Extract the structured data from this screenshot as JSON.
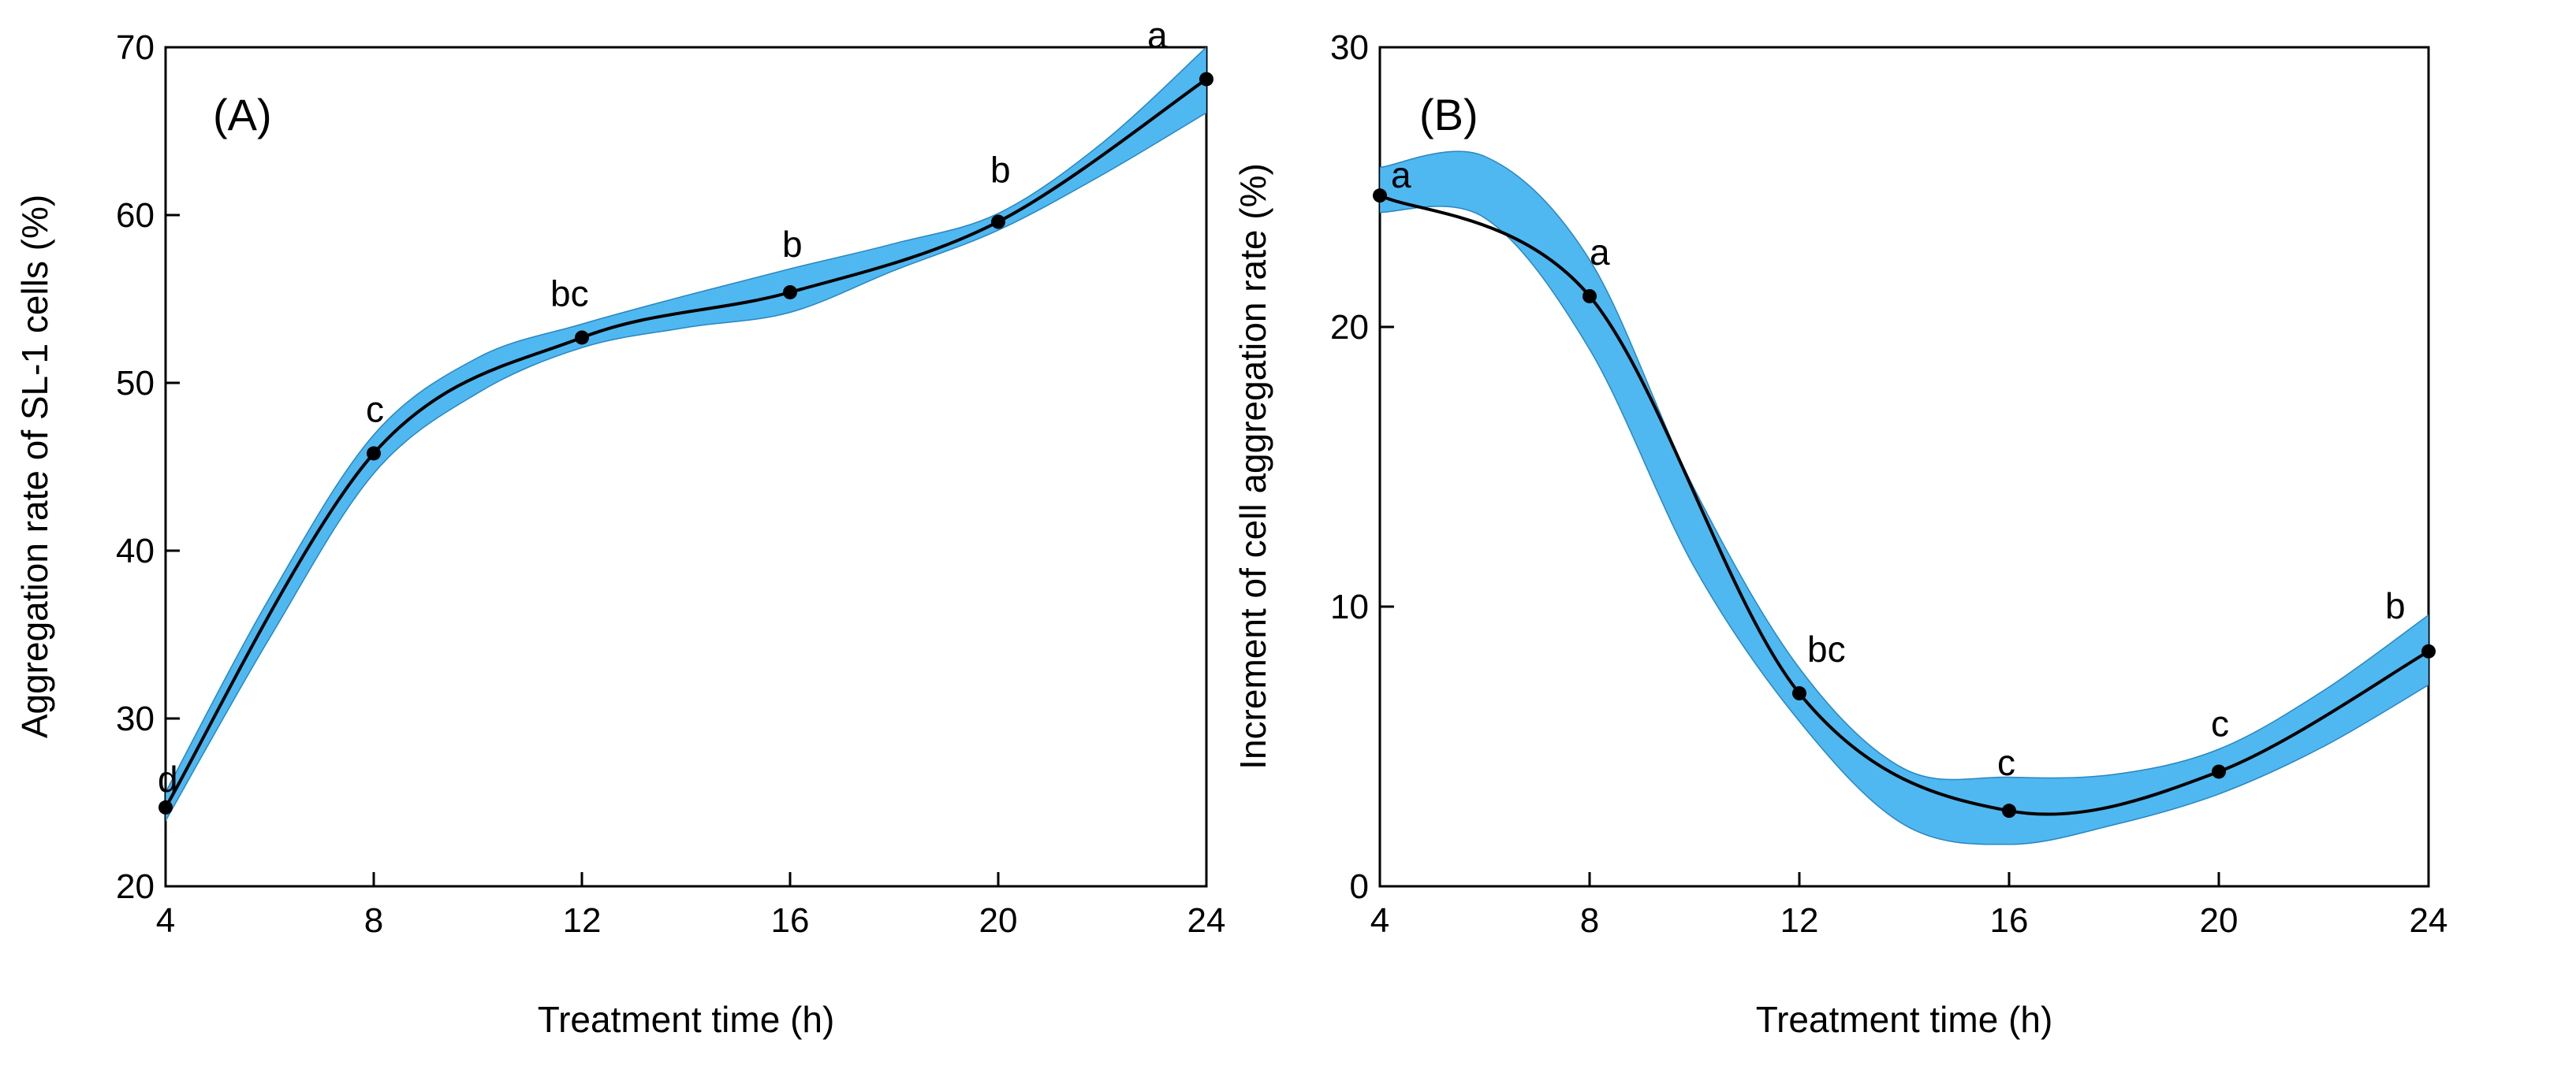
{
  "chart_data": [
    {
      "type": "line",
      "panel_label": "(A)",
      "xlabel": "Treatment time (h)",
      "ylabel": "Aggregation rate of SL-1 cells (%)",
      "xlim": [
        4,
        24
      ],
      "ylim": [
        20,
        70
      ],
      "x_ticks": [
        4,
        8,
        12,
        16,
        20,
        24
      ],
      "y_ticks": [
        20,
        30,
        40,
        50,
        60,
        70
      ],
      "series": [
        {
          "name": "Aggregation rate",
          "x": [
            4,
            8,
            12,
            16,
            20,
            24
          ],
          "y": [
            24.7,
            45.8,
            52.7,
            55.4,
            59.6,
            68.1
          ],
          "labels": [
            "d",
            "c",
            "bc",
            "b",
            "b",
            "a"
          ]
        }
      ],
      "band": {
        "x": [
          4,
          6,
          8,
          10,
          12,
          14,
          16,
          18,
          20,
          22,
          24
        ],
        "upper": [
          25.6,
          37.2,
          46.9,
          51.5,
          53.5,
          55.2,
          56.8,
          58.3,
          60.1,
          64.3,
          70.0
        ],
        "lower": [
          23.9,
          34.8,
          44.6,
          49.4,
          52.1,
          53.3,
          54.2,
          56.7,
          59.1,
          62.4,
          66.1
        ]
      },
      "colors": {
        "band": "#4fb8f0",
        "line": "#000000"
      }
    },
    {
      "type": "line",
      "panel_label": "(B)",
      "xlabel": "Treatment time (h)",
      "ylabel": "Increment of cell aggregation rate (%)",
      "xlim": [
        4,
        24
      ],
      "ylim": [
        0,
        30
      ],
      "x_ticks": [
        4,
        8,
        12,
        16,
        20,
        24
      ],
      "y_ticks": [
        0,
        10,
        20,
        30
      ],
      "series": [
        {
          "name": "Increment",
          "x": [
            4,
            8,
            12,
            16,
            20,
            24
          ],
          "y": [
            24.7,
            21.1,
            6.9,
            2.7,
            4.1,
            8.4
          ],
          "labels": [
            "a",
            "a",
            "bc",
            "c",
            "c",
            "b"
          ]
        }
      ],
      "band": {
        "x": [
          4,
          6,
          8,
          10,
          12,
          14,
          16,
          18,
          20,
          22,
          24
        ],
        "upper": [
          25.7,
          26.1,
          22.4,
          14.2,
          7.8,
          4.2,
          3.9,
          4.0,
          4.9,
          7.0,
          9.7
        ],
        "lower": [
          24.1,
          23.9,
          19.2,
          11.4,
          5.9,
          2.2,
          1.5,
          2.2,
          3.3,
          5.0,
          7.2
        ]
      },
      "colors": {
        "band": "#4fb8f0",
        "line": "#000000"
      }
    }
  ]
}
